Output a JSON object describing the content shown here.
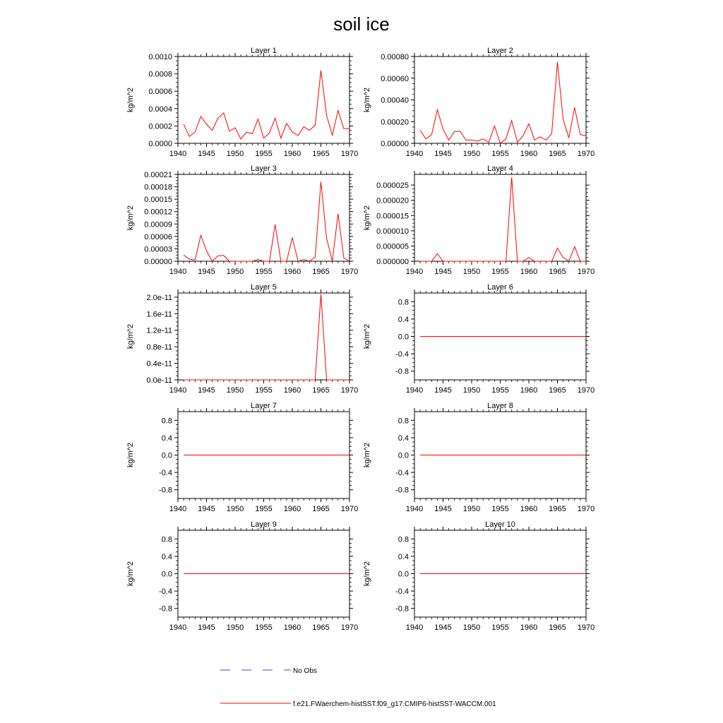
{
  "figure": {
    "title": "soil ice",
    "colors": {
      "model": "#ff0000",
      "obs": "#4040d0",
      "axis": "#000000"
    },
    "legend": {
      "obs_label": "No Obs",
      "model_label": "f.e21.FWaerchem-histSST.f09_g17.CMIP6-histSST-WACCM.001"
    }
  },
  "chart_data": [
    {
      "type": "line",
      "title": "Layer 1",
      "ylabel": "kg/m^2",
      "xlim": [
        1940,
        1970
      ],
      "x_ticks": [
        "1940",
        "1945",
        "1950",
        "1955",
        "1960",
        "1965",
        "1970"
      ],
      "ylim": [
        0,
        0.001
      ],
      "y_ticks": [
        0,
        0.0002,
        0.0004,
        0.0006,
        0.0008,
        0.001
      ],
      "y_tick_labels": [
        "0.0000",
        "0.0002",
        "0.0004",
        "0.0006",
        "0.0008",
        "0.0010"
      ],
      "x": [
        1941,
        1942,
        1943,
        1944,
        1945,
        1946,
        1947,
        1948,
        1949,
        1950,
        1951,
        1952,
        1953,
        1954,
        1955,
        1956,
        1957,
        1958,
        1959,
        1960,
        1961,
        1962,
        1963,
        1964,
        1965,
        1966,
        1967,
        1968,
        1969,
        1970
      ],
      "series": [
        {
          "name": "f.e21.FWaerchem-histSST.f09_g17.CMIP6-histSST-WACCM.001",
          "values": [
            0.00022,
            8e-05,
            0.00013,
            0.00031,
            0.00022,
            0.00015,
            0.00029,
            0.00035,
            0.00014,
            0.00018,
            5e-05,
            0.00013,
            0.00011,
            0.00028,
            6e-05,
            0.00012,
            0.00029,
            6e-05,
            0.00023,
            0.00013,
            9e-05,
            0.00019,
            0.00015,
            0.00021,
            0.00084,
            0.00032,
            9e-05,
            0.00038,
            0.00017,
            0.00017
          ]
        }
      ]
    },
    {
      "type": "line",
      "title": "Layer 2",
      "ylabel": "kg/m^2",
      "xlim": [
        1940,
        1970
      ],
      "x_ticks": [
        "1940",
        "1945",
        "1950",
        "1955",
        "1960",
        "1965",
        "1970"
      ],
      "ylim": [
        0,
        0.0008
      ],
      "y_ticks": [
        0,
        0.0002,
        0.0004,
        0.0006,
        0.0008
      ],
      "y_tick_labels": [
        "0.00000",
        "0.00020",
        "0.00040",
        "0.00060",
        "0.00080"
      ],
      "x": [
        1941,
        1942,
        1943,
        1944,
        1945,
        1946,
        1947,
        1948,
        1949,
        1950,
        1951,
        1952,
        1953,
        1954,
        1955,
        1956,
        1957,
        1958,
        1959,
        1960,
        1961,
        1962,
        1963,
        1964,
        1965,
        1966,
        1967,
        1968,
        1969,
        1970
      ],
      "series": [
        {
          "name": "f.e21.FWaerchem-histSST.f09_g17.CMIP6-histSST-WACCM.001",
          "values": [
            0.00012,
            4e-05,
            8e-05,
            0.00031,
            0.00013,
            3e-05,
            0.00011,
            0.00011,
            3e-05,
            3e-05,
            2e-05,
            4e-05,
            1e-05,
            0.00016,
            0.0,
            4e-05,
            0.00021,
            1e-05,
            7e-05,
            0.00018,
            3e-05,
            6e-05,
            3e-05,
            9e-05,
            0.00075,
            0.00022,
            5e-05,
            0.00033,
            8e-05,
            7e-05
          ]
        }
      ]
    },
    {
      "type": "line",
      "title": "Layer 3",
      "ylabel": "kg/m^2",
      "xlim": [
        1940,
        1970
      ],
      "x_ticks": [
        "1940",
        "1945",
        "1950",
        "1955",
        "1960",
        "1965",
        "1970"
      ],
      "ylim": [
        0,
        0.00021
      ],
      "y_ticks": [
        0,
        3e-05,
        6e-05,
        9e-05,
        0.00012,
        0.00015,
        0.00018,
        0.00021
      ],
      "y_tick_labels": [
        "0.00000",
        "0.00003",
        "0.00006",
        "0.00009",
        "0.00012",
        "0.00015",
        "0.00018",
        "0.00021"
      ],
      "x": [
        1941,
        1942,
        1943,
        1944,
        1945,
        1946,
        1947,
        1948,
        1949,
        1950,
        1951,
        1952,
        1953,
        1954,
        1955,
        1956,
        1957,
        1958,
        1959,
        1960,
        1961,
        1962,
        1963,
        1964,
        1965,
        1966,
        1967,
        1968,
        1969,
        1970
      ],
      "series": [
        {
          "name": "f.e21.FWaerchem-histSST.f09_g17.CMIP6-histSST-WACCM.001",
          "values": [
            1.5e-05,
            5e-06,
            3e-06,
            6.3e-05,
            2.5e-05,
            0.0,
            1.3e-05,
            1.4e-05,
            0.0,
            0.0,
            0.0,
            0.0,
            0.0,
            4e-06,
            0.0,
            0.0,
            8.9e-05,
            0.0,
            0.0,
            5.7e-05,
            0.0,
            4e-06,
            0.0,
            1e-05,
            0.000192,
            5.5e-05,
            0.0,
            0.000115,
            8e-06,
            0.0
          ]
        }
      ]
    },
    {
      "type": "line",
      "title": "Layer 4",
      "ylabel": "kg/m^2",
      "xlim": [
        1940,
        1970
      ],
      "x_ticks": [
        "1940",
        "1945",
        "1950",
        "1955",
        "1960",
        "1965",
        "1970"
      ],
      "ylim": [
        0,
        2.85e-05
      ],
      "y_ticks": [
        0,
        5e-06,
        1e-05,
        1.5e-05,
        2e-05,
        2.5e-05
      ],
      "y_tick_labels": [
        "0.000000",
        "0.000005",
        "0.000010",
        "0.000015",
        "0.000020",
        "0.000025"
      ],
      "x": [
        1941,
        1942,
        1943,
        1944,
        1945,
        1946,
        1947,
        1948,
        1949,
        1950,
        1951,
        1952,
        1953,
        1954,
        1955,
        1956,
        1957,
        1958,
        1959,
        1960,
        1961,
        1962,
        1963,
        1964,
        1965,
        1966,
        1967,
        1968,
        1969,
        1970
      ],
      "series": [
        {
          "name": "f.e21.FWaerchem-histSST.f09_g17.CMIP6-histSST-WACCM.001",
          "values": [
            0,
            0,
            0,
            2.5e-06,
            0,
            0,
            0,
            0,
            0,
            0,
            0,
            0,
            0,
            0,
            0,
            0,
            2.75e-05,
            0,
            0,
            1.2e-06,
            0,
            0,
            0,
            0,
            4.3e-06,
            1.2e-06,
            0,
            4.8e-06,
            0,
            0
          ]
        }
      ]
    },
    {
      "type": "line",
      "title": "Layer 5",
      "ylabel": "kg/m^2",
      "xlim": [
        1940,
        1970
      ],
      "x_ticks": [
        "1940",
        "1945",
        "1950",
        "1955",
        "1960",
        "1965",
        "1970"
      ],
      "ylim": [
        0,
        2.1e-11
      ],
      "y_ticks": [
        0,
        4e-12,
        8e-12,
        1.2e-11,
        1.6e-11,
        2e-11
      ],
      "y_tick_labels": [
        "0.0e-11",
        "0.4e-11",
        "0.8e-11",
        "1.2e-11",
        "1.6e-11",
        "2.0e-11"
      ],
      "x": [
        1941,
        1942,
        1943,
        1944,
        1945,
        1946,
        1947,
        1948,
        1949,
        1950,
        1951,
        1952,
        1953,
        1954,
        1955,
        1956,
        1957,
        1958,
        1959,
        1960,
        1961,
        1962,
        1963,
        1964,
        1965,
        1966,
        1967,
        1968,
        1969,
        1970
      ],
      "series": [
        {
          "name": "f.e21.FWaerchem-histSST.f09_g17.CMIP6-histSST-WACCM.001",
          "values": [
            0,
            0,
            0,
            0,
            0,
            0,
            0,
            0,
            0,
            0,
            0,
            0,
            0,
            0,
            0,
            0,
            0,
            0,
            0,
            0,
            0,
            0,
            0,
            0,
            2.07e-11,
            0,
            0,
            0,
            0,
            0
          ]
        }
      ]
    },
    {
      "type": "line",
      "title": "Layer 6",
      "ylabel": "kg/m^2",
      "xlim": [
        1940,
        1970
      ],
      "x_ticks": [
        "1940",
        "1945",
        "1950",
        "1955",
        "1960",
        "1965",
        "1970"
      ],
      "ylim": [
        -1,
        1
      ],
      "y_ticks": [
        -0.8,
        -0.4,
        0,
        0.4,
        0.8
      ],
      "y_tick_labels": [
        "-0.8",
        "-0.4",
        "0.0",
        "0.4",
        "0.8"
      ],
      "x": [
        1941,
        1970
      ],
      "series": [
        {
          "name": "f.e21.FWaerchem-histSST.f09_g17.CMIP6-histSST-WACCM.001",
          "values": [
            0,
            0
          ]
        }
      ]
    },
    {
      "type": "line",
      "title": "Layer 7",
      "ylabel": "kg/m^2",
      "xlim": [
        1940,
        1970
      ],
      "x_ticks": [
        "1940",
        "1945",
        "1950",
        "1955",
        "1960",
        "1965",
        "1970"
      ],
      "ylim": [
        -1,
        1
      ],
      "y_ticks": [
        -0.8,
        -0.4,
        0,
        0.4,
        0.8
      ],
      "y_tick_labels": [
        "-0.8",
        "-0.4",
        "0.0",
        "0.4",
        "0.8"
      ],
      "x": [
        1941,
        1970
      ],
      "series": [
        {
          "name": "f.e21.FWaerchem-histSST.f09_g17.CMIP6-histSST-WACCM.001",
          "values": [
            0,
            0
          ]
        }
      ]
    },
    {
      "type": "line",
      "title": "Layer 8",
      "ylabel": "kg/m^2",
      "xlim": [
        1940,
        1970
      ],
      "x_ticks": [
        "1940",
        "1945",
        "1950",
        "1955",
        "1960",
        "1965",
        "1970"
      ],
      "ylim": [
        -1,
        1
      ],
      "y_ticks": [
        -0.8,
        -0.4,
        0,
        0.4,
        0.8
      ],
      "y_tick_labels": [
        "-0.8",
        "-0.4",
        "0.0",
        "0.4",
        "0.8"
      ],
      "x": [
        1941,
        1970
      ],
      "series": [
        {
          "name": "f.e21.FWaerchem-histSST.f09_g17.CMIP6-histSST-WACCM.001",
          "values": [
            0,
            0
          ]
        }
      ]
    },
    {
      "type": "line",
      "title": "Layer 9",
      "ylabel": "kg/m^2",
      "xlim": [
        1940,
        1970
      ],
      "x_ticks": [
        "1940",
        "1945",
        "1950",
        "1955",
        "1960",
        "1965",
        "1970"
      ],
      "ylim": [
        -1,
        1
      ],
      "y_ticks": [
        -0.8,
        -0.4,
        0,
        0.4,
        0.8
      ],
      "y_tick_labels": [
        "-0.8",
        "-0.4",
        "0.0",
        "0.4",
        "0.8"
      ],
      "x": [
        1941,
        1970
      ],
      "series": [
        {
          "name": "f.e21.FWaerchem-histSST.f09_g17.CMIP6-histSST-WACCM.001",
          "values": [
            0,
            0
          ]
        }
      ]
    },
    {
      "type": "line",
      "title": "Layer 10",
      "ylabel": "kg/m^2",
      "xlim": [
        1940,
        1970
      ],
      "x_ticks": [
        "1940",
        "1945",
        "1950",
        "1955",
        "1960",
        "1965",
        "1970"
      ],
      "ylim": [
        -1,
        1
      ],
      "y_ticks": [
        -0.8,
        -0.4,
        0,
        0.4,
        0.8
      ],
      "y_tick_labels": [
        "-0.8",
        "-0.4",
        "0.0",
        "0.4",
        "0.8"
      ],
      "x": [
        1941,
        1970
      ],
      "series": [
        {
          "name": "f.e21.FWaerchem-histSST.f09_g17.CMIP6-histSST-WACCM.001",
          "values": [
            0,
            0
          ]
        }
      ]
    }
  ]
}
